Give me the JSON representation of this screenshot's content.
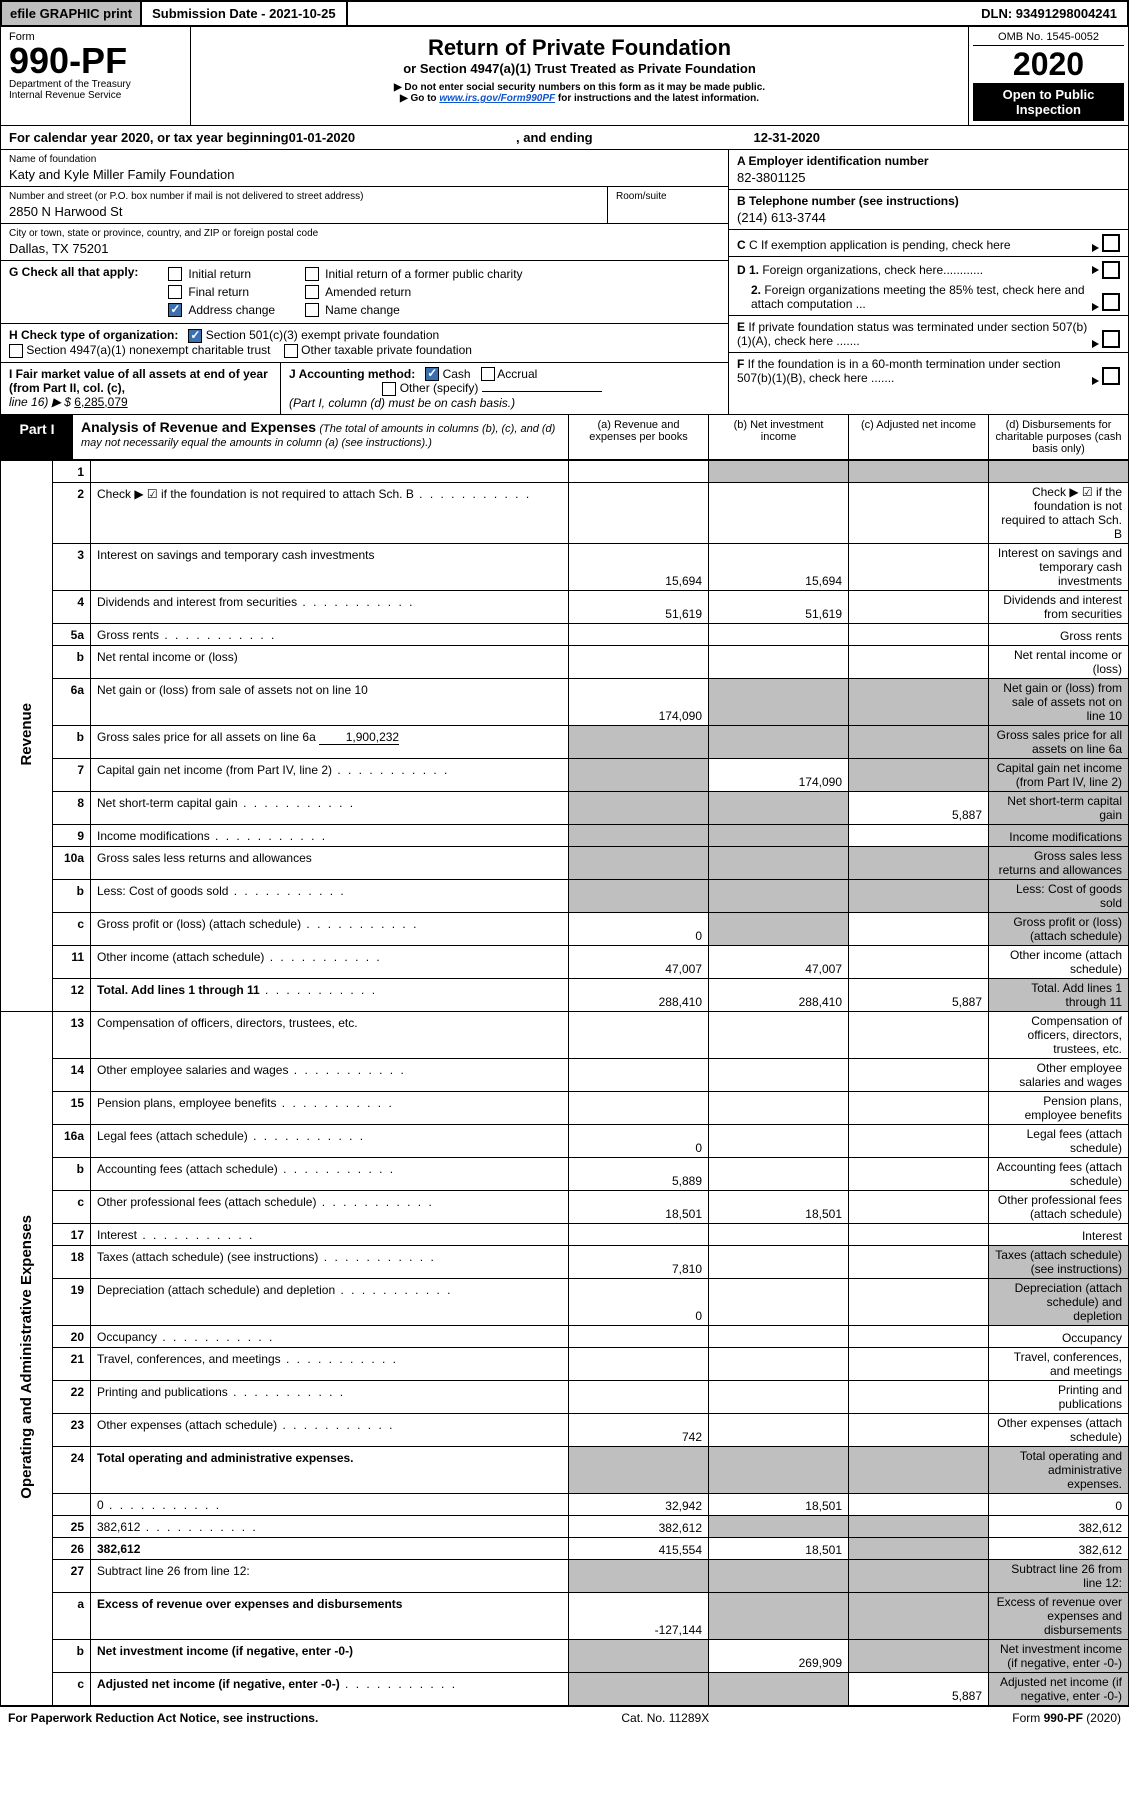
{
  "colors": {
    "bg": "#ffffff",
    "header_gray": "#bfbfbf",
    "blue_check": "#3a6fb0",
    "shade": "#bfbfbf",
    "black": "#000000",
    "link": "#1155cc"
  },
  "topbar": {
    "efile": "efile GRAPHIC print",
    "submission_label": "Submission Date - 2021-10-25",
    "dln": "DLN: 93491298004241"
  },
  "header": {
    "form_label": "Form",
    "form_no": "990-PF",
    "dept": "Department of the Treasury",
    "irs": "Internal Revenue Service",
    "title": "Return of Private Foundation",
    "subtitle": "or Section 4947(a)(1) Trust Treated as Private Foundation",
    "note1": "▶ Do not enter social security numbers on this form as it may be made public.",
    "note2_pre": "▶ Go to ",
    "note2_link": "www.irs.gov/Form990PF",
    "note2_post": " for instructions and the latest information.",
    "omb": "OMB No. 1545-0052",
    "year": "2020",
    "open": "Open to Public Inspection"
  },
  "calendar": {
    "text_pre": "For calendar year 2020, or tax year beginning ",
    "begin": "01-01-2020",
    "mid": " , and ending ",
    "end": "12-31-2020"
  },
  "id": {
    "name_label": "Name of foundation",
    "name": "Katy and Kyle Miller Family Foundation",
    "addr_label": "Number and street (or P.O. box number if mail is not delivered to street address)",
    "room_label": "Room/suite",
    "addr": "2850 N Harwood St",
    "city_label": "City or town, state or province, country, and ZIP or foreign postal code",
    "city": "Dallas, TX  75201",
    "a_label": "A Employer identification number",
    "a_val": "82-3801125",
    "b_label": "B Telephone number (see instructions)",
    "b_val": "(214) 613-3744",
    "c_label": "C If exemption application is pending, check here",
    "d1": "D 1. Foreign organizations, check here",
    "d2": "2. Foreign organizations meeting the 85% test, check here and attach computation",
    "e_label": "E  If private foundation status was terminated under section 507(b)(1)(A), check here",
    "f_label": "F  If the foundation is in a 60-month termination under section 507(b)(1)(B), check here"
  },
  "g": {
    "label": "G Check all that apply:",
    "o1": "Initial return",
    "o2": "Final return",
    "o3": "Address change",
    "o4": "Initial return of a former public charity",
    "o5": "Amended return",
    "o6": "Name change"
  },
  "h": {
    "label": "H Check type of organization:",
    "o1": "Section 501(c)(3) exempt private foundation",
    "o2": "Section 4947(a)(1) nonexempt charitable trust",
    "o3": "Other taxable private foundation"
  },
  "i": {
    "label_pre": "I Fair market value of all assets at end of year (from Part II, col. (c),",
    "line16": "line 16) ▶ $",
    "val": "6,285,079"
  },
  "j": {
    "label": "J Accounting method:",
    "o1": "Cash",
    "o2": "Accrual",
    "o3": "Other (specify)",
    "note": "(Part I, column (d) must be on cash basis.)"
  },
  "part1": {
    "tab": "Part I",
    "title": "Analysis of Revenue and Expenses",
    "title_note": " (The total of amounts in columns (b), (c), and (d) may not necessarily equal the amounts in column (a) (see instructions).)",
    "col_a": "(a)   Revenue and expenses per books",
    "col_b": "(b)   Net investment income",
    "col_c": "(c)  Adjusted net income",
    "col_d": "(d)  Disbursements for charitable purposes (cash basis only)"
  },
  "vlabels": {
    "revenue": "Revenue",
    "opex": "Operating and Administrative Expenses"
  },
  "revenue_rows": [
    {
      "n": "1",
      "d": "",
      "a": "",
      "b": "",
      "c": "",
      "shade": [
        "b",
        "c",
        "d"
      ]
    },
    {
      "n": "2",
      "d": "Check ▶ ☑ if the foundation is not required to attach Sch. B",
      "inline_check": true,
      "dots": true,
      "noborder": true
    },
    {
      "n": "3",
      "d": "Interest on savings and temporary cash investments",
      "a": "15,694",
      "b": "15,694"
    },
    {
      "n": "4",
      "d": "Dividends and interest from securities",
      "dots": true,
      "a": "51,619",
      "b": "51,619"
    },
    {
      "n": "5a",
      "d": "Gross rents",
      "dots": true
    },
    {
      "n": "b",
      "d": "Net rental income or (loss)",
      "ul": true,
      "noborder": true
    },
    {
      "n": "6a",
      "d": "Net gain or (loss) from sale of assets not on line 10",
      "a": "174,090",
      "shade": [
        "b",
        "c",
        "d"
      ]
    },
    {
      "n": "b",
      "d": "Gross sales price for all assets on line 6a",
      "extra": "1,900,232",
      "shade": [
        "a",
        "b",
        "c",
        "d"
      ],
      "noborder": true
    },
    {
      "n": "7",
      "d": "Capital gain net income (from Part IV, line 2)",
      "dots": true,
      "b": "174,090",
      "shade": [
        "a",
        "c",
        "d"
      ]
    },
    {
      "n": "8",
      "d": "Net short-term capital gain",
      "dots": true,
      "c": "5,887",
      "shade": [
        "a",
        "b",
        "d"
      ]
    },
    {
      "n": "9",
      "d": "Income modifications",
      "dots": true,
      "shade": [
        "a",
        "b",
        "d"
      ]
    },
    {
      "n": "10a",
      "d": "Gross sales less returns and allowances",
      "ul": true,
      "noborder": true,
      "shade": [
        "a",
        "b",
        "c",
        "d"
      ]
    },
    {
      "n": "b",
      "d": "Less: Cost of goods sold",
      "ul": true,
      "dots": true,
      "noborder": true,
      "shade": [
        "a",
        "b",
        "c",
        "d"
      ]
    },
    {
      "n": "c",
      "d": "Gross profit or (loss) (attach schedule)",
      "dots": true,
      "a": "0",
      "shade": [
        "b",
        "d"
      ]
    },
    {
      "n": "11",
      "d": "Other income (attach schedule)",
      "dots": true,
      "a": "47,007",
      "b": "47,007"
    },
    {
      "n": "12",
      "d": "Total. Add lines 1 through 11",
      "bold": true,
      "dots": true,
      "a": "288,410",
      "b": "288,410",
      "c": "5,887",
      "shade": [
        "d"
      ]
    }
  ],
  "expense_rows": [
    {
      "n": "13",
      "d": "Compensation of officers, directors, trustees, etc."
    },
    {
      "n": "14",
      "d": "Other employee salaries and wages",
      "dots": true
    },
    {
      "n": "15",
      "d": "Pension plans, employee benefits",
      "dots": true
    },
    {
      "n": "16a",
      "d": "Legal fees (attach schedule)",
      "dots": true,
      "a": "0"
    },
    {
      "n": "b",
      "d": "Accounting fees (attach schedule)",
      "dots": true,
      "a": "5,889"
    },
    {
      "n": "c",
      "d": "Other professional fees (attach schedule)",
      "dots": true,
      "a": "18,501",
      "b": "18,501"
    },
    {
      "n": "17",
      "d": "Interest",
      "dots": true
    },
    {
      "n": "18",
      "d": "Taxes (attach schedule) (see instructions)",
      "dots": true,
      "a": "7,810",
      "shade": [
        "d"
      ]
    },
    {
      "n": "19",
      "d": "Depreciation (attach schedule) and depletion",
      "dots": true,
      "a": "0",
      "shade": [
        "d"
      ]
    },
    {
      "n": "20",
      "d": "Occupancy",
      "dots": true
    },
    {
      "n": "21",
      "d": "Travel, conferences, and meetings",
      "dots": true
    },
    {
      "n": "22",
      "d": "Printing and publications",
      "dots": true
    },
    {
      "n": "23",
      "d": "Other expenses (attach schedule)",
      "dots": true,
      "a": "742"
    },
    {
      "n": "24",
      "d": "Total operating and administrative expenses.",
      "bold": true,
      "noborder": true,
      "shade": [
        "a",
        "b",
        "c",
        "d"
      ]
    },
    {
      "n": "",
      "d": "0",
      "dots": true,
      "a": "32,942",
      "b": "18,501"
    },
    {
      "n": "25",
      "d": "382,612",
      "dots": true,
      "a": "382,612",
      "shade": [
        "b",
        "c"
      ]
    },
    {
      "n": "26",
      "d": "382,612",
      "bold": true,
      "a": "415,554",
      "b": "18,501",
      "shade": [
        "c"
      ]
    },
    {
      "n": "27",
      "d": "Subtract line 26 from line 12:",
      "shade": [
        "a",
        "b",
        "c",
        "d"
      ]
    },
    {
      "n": "a",
      "d": "Excess of revenue over expenses and disbursements",
      "bold": true,
      "a": "-127,144",
      "shade": [
        "b",
        "c",
        "d"
      ]
    },
    {
      "n": "b",
      "d": "Net investment income (if negative, enter -0-)",
      "bold": true,
      "b": "269,909",
      "shade": [
        "a",
        "c",
        "d"
      ]
    },
    {
      "n": "c",
      "d": "Adjusted net income (if negative, enter -0-)",
      "bold": true,
      "dots": true,
      "c": "5,887",
      "shade": [
        "a",
        "b",
        "d"
      ]
    }
  ],
  "footer": {
    "left": "For Paperwork Reduction Act Notice, see instructions.",
    "mid": "Cat. No. 11289X",
    "right": "Form 990-PF (2020)"
  }
}
